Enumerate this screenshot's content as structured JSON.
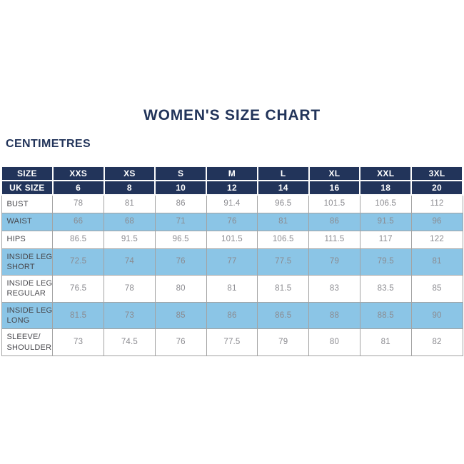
{
  "colors": {
    "navy": "#22345A",
    "header_text": "#FFFFFF",
    "header_separator": "#FCFCFC",
    "light_blue": "#8BC5E6",
    "value_text": "#8B8B90",
    "label_text": "#47474C",
    "border": "#A3A3A3",
    "background": "#FFFFFF"
  },
  "chart_data": {
    "type": "table",
    "title": "WOMEN'S SIZE CHART",
    "units": "CENTIMETRES",
    "size_row": {
      "label": "SIZE",
      "values": [
        "XXS",
        "XS",
        "S",
        "M",
        "L",
        "XL",
        "XXL",
        "3XL"
      ]
    },
    "uk_size_row": {
      "label": "UK SIZE",
      "values": [
        "6",
        "8",
        "10",
        "12",
        "14",
        "16",
        "18",
        "20"
      ]
    },
    "measurement_rows": [
      {
        "label": "BUST",
        "highlighted": false,
        "values": [
          "78",
          "81",
          "86",
          "91.4",
          "96.5",
          "101.5",
          "106.5",
          "112"
        ]
      },
      {
        "label": "WAIST",
        "highlighted": true,
        "values": [
          "66",
          "68",
          "71",
          "76",
          "81",
          "86",
          "91.5",
          "96"
        ]
      },
      {
        "label": "HIPS",
        "highlighted": false,
        "values": [
          "86.5",
          "91.5",
          "96.5",
          "101.5",
          "106.5",
          "111.5",
          "117",
          "122"
        ]
      },
      {
        "label": "INSIDE LEG SHORT",
        "highlighted": true,
        "values": [
          "72.5",
          "74",
          "76",
          "77",
          "77.5",
          "79",
          "79.5",
          "81"
        ]
      },
      {
        "label": "INSIDE LEG REGULAR",
        "highlighted": false,
        "values": [
          "76.5",
          "78",
          "80",
          "81",
          "81.5",
          "83",
          "83.5",
          "85"
        ]
      },
      {
        "label": "INSIDE LEG LONG",
        "highlighted": true,
        "values": [
          "81.5",
          "73",
          "85",
          "86",
          "86.5",
          "88",
          "88.5",
          "90"
        ]
      },
      {
        "label": "SLEEVE/ SHOULDER",
        "highlighted": false,
        "values": [
          "73",
          "74.5",
          "76",
          "77.5",
          "79",
          "80",
          "81",
          "82"
        ]
      }
    ]
  }
}
